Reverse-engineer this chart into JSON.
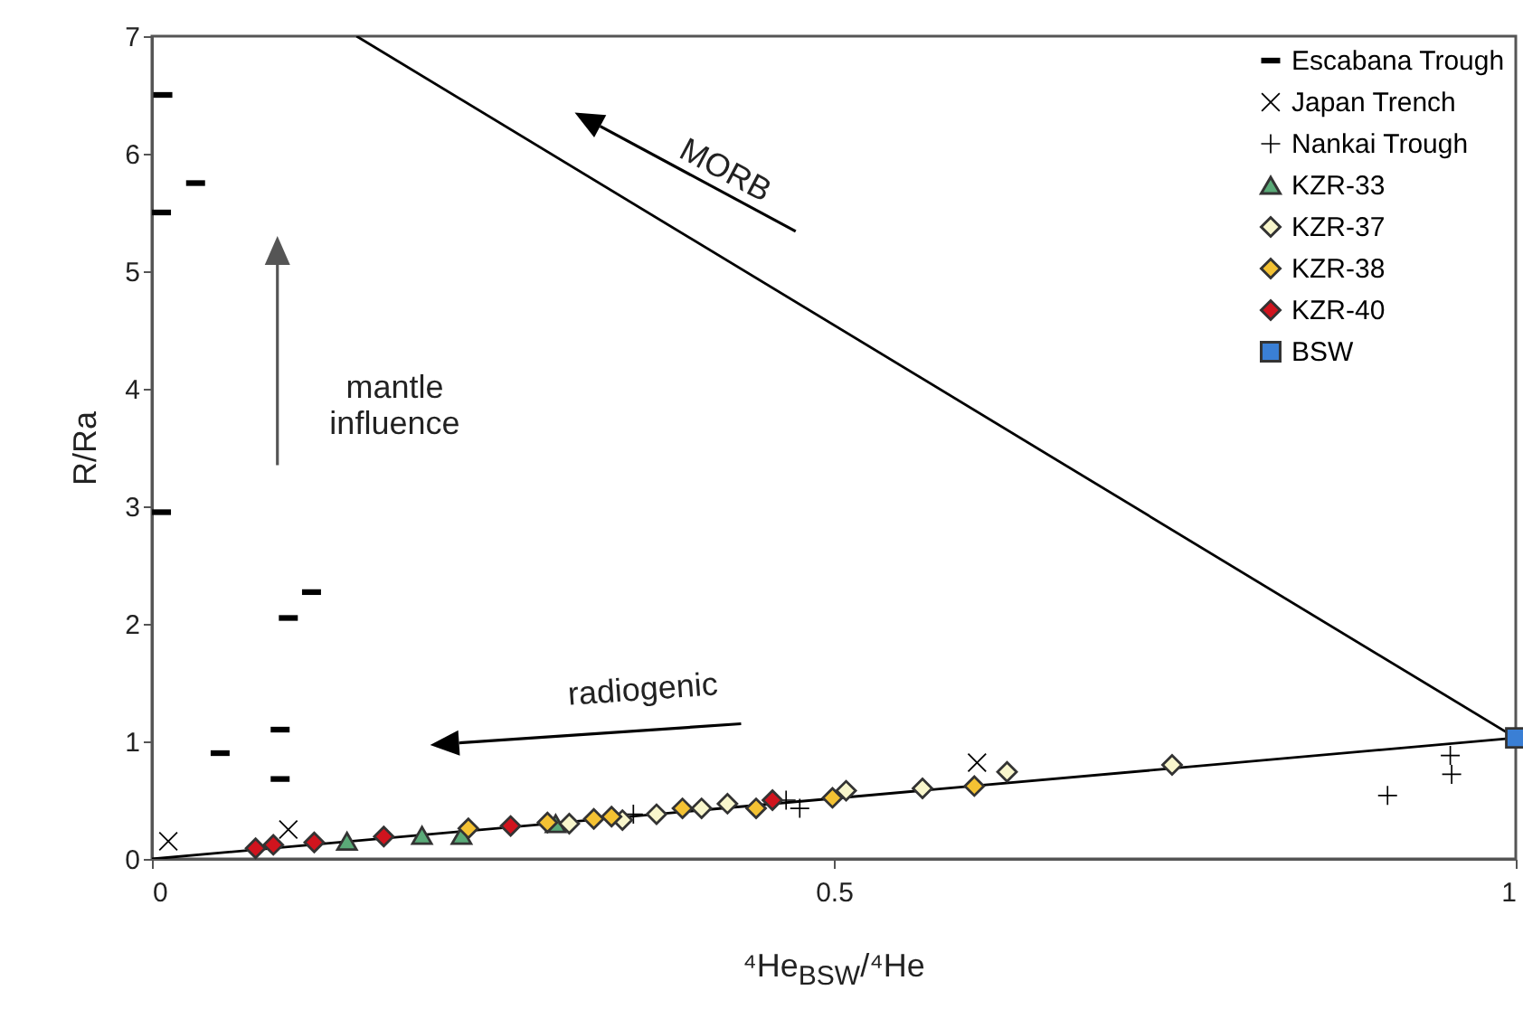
{
  "chart_data": {
    "type": "scatter",
    "xlabel": "⁴He$_{BSW}$/⁴He",
    "ylabel": "R/Ra",
    "xlim": [
      0,
      1
    ],
    "ylim": [
      0,
      7
    ],
    "xticks": [
      0,
      0.5,
      1
    ],
    "yticks": [
      0,
      1,
      2,
      3,
      4,
      5,
      6,
      7
    ],
    "grid": false,
    "legend": "top right",
    "series": [
      {
        "name": "Escabana Trough",
        "color": "#000000",
        "x": [
          0.008,
          0.032,
          0.007,
          0.007,
          0.117,
          0.1,
          0.094,
          0.05,
          0.094
        ],
        "values": [
          6.5,
          5.75,
          5.5,
          2.95,
          2.27,
          2.05,
          1.1,
          0.9,
          0.68
        ]
      },
      {
        "name": "Japan Trench",
        "color": "#000000",
        "marker": "cross",
        "x": [
          0.012,
          0.1,
          0.605
        ],
        "values": [
          0.15,
          0.25,
          0.82
        ]
      },
      {
        "name": "Nankai Trough",
        "color": "#000000",
        "x": [
          0.353,
          0.465,
          0.475,
          0.906,
          0.952,
          0.953
        ],
        "values": [
          0.38,
          0.5,
          0.43,
          0.54,
          0.88,
          0.72
        ]
      },
      {
        "name": "KZR-33",
        "color": "#5aaa78",
        "marker": "triangle",
        "x": [
          0.143,
          0.198,
          0.227,
          0.296
        ],
        "values": [
          0.15,
          0.2,
          0.2,
          0.3
        ]
      },
      {
        "name": "KZR-37",
        "color": "#f8f6cc",
        "marker": "diamond",
        "x": [
          0.306,
          0.345,
          0.37,
          0.403,
          0.422,
          0.509,
          0.565,
          0.627,
          0.748
        ],
        "values": [
          0.3,
          0.33,
          0.38,
          0.43,
          0.47,
          0.58,
          0.6,
          0.74,
          0.8
        ]
      },
      {
        "name": "KZR-38",
        "color": "#f4c233",
        "marker": "diamond",
        "x": [
          0.232,
          0.29,
          0.324,
          0.337,
          0.389,
          0.443,
          0.499,
          0.603
        ],
        "values": [
          0.26,
          0.31,
          0.34,
          0.36,
          0.43,
          0.43,
          0.52,
          0.62
        ]
      },
      {
        "name": "KZR-40",
        "color": "#d0141e",
        "marker": "diamond",
        "x": [
          0.076,
          0.089,
          0.119,
          0.17,
          0.263,
          0.455
        ],
        "values": [
          0.09,
          0.12,
          0.14,
          0.19,
          0.28,
          0.5
        ]
      },
      {
        "name": "BSW",
        "color": "#3a7fd5",
        "marker": "square",
        "x": [
          1
        ],
        "values": [
          1.03
        ]
      },
      {
        "type": "line",
        "color": "#000000",
        "x": [
          0.15,
          1
        ],
        "values": [
          7,
          1.03
        ]
      },
      {
        "type": "line",
        "color": "#000000",
        "x": [
          0,
          1
        ],
        "values": [
          0,
          1.03
        ]
      }
    ],
    "annotations": [
      "MORB",
      "mantle influence",
      "radiogenic"
    ]
  }
}
